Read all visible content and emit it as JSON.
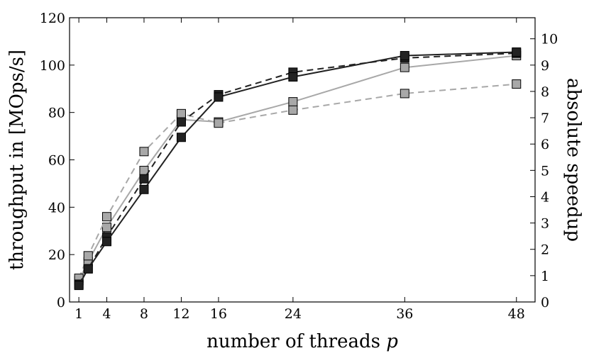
{
  "chart_data": {
    "type": "line",
    "xlabel": "number of threads",
    "xlabel_var": "p",
    "ylabel": "throughput in [MOps/s]",
    "y2label": "absolute speedup",
    "xlim": [
      0,
      50
    ],
    "ylim": [
      0,
      120
    ],
    "y2lim": [
      0,
      10.8
    ],
    "xticks": [
      1,
      4,
      8,
      12,
      16,
      24,
      36,
      48
    ],
    "yticks": [
      0,
      20,
      40,
      60,
      80,
      100,
      120
    ],
    "y2ticks": [
      0,
      1,
      2,
      3,
      4,
      5,
      6,
      7,
      8,
      9,
      10
    ],
    "grid": false,
    "series": [
      {
        "color": "#222222",
        "marker_color": "#222222",
        "dash": "solid",
        "x": [
          1,
          2,
          4,
          8,
          12,
          16,
          24,
          36,
          48
        ],
        "y": [
          7,
          14,
          25.5,
          47.5,
          69.5,
          86.5,
          95,
          104,
          105.5
        ]
      },
      {
        "color": "#222222",
        "marker_color": "#222222",
        "dash": "dashed",
        "x": [
          1,
          2,
          4,
          8,
          12,
          16,
          24,
          36,
          48
        ],
        "y": [
          7.5,
          14,
          27.5,
          52,
          76,
          87.5,
          97,
          103,
          105
        ]
      },
      {
        "color": "#a8a8a8",
        "marker_color": "#a8a8a8",
        "dash": "solid",
        "x": [
          1,
          2,
          4,
          8,
          12,
          16,
          24,
          36,
          48
        ],
        "y": [
          9,
          17,
          31.5,
          55.5,
          77,
          76,
          84.5,
          99,
          104
        ]
      },
      {
        "color": "#a8a8a8",
        "marker_color": "#a8a8a8",
        "dash": "dashed",
        "x": [
          1,
          2,
          4,
          8,
          12,
          16,
          24,
          36,
          48
        ],
        "y": [
          10,
          19.5,
          36,
          63.5,
          79.5,
          75.5,
          81,
          88,
          92
        ]
      }
    ]
  }
}
